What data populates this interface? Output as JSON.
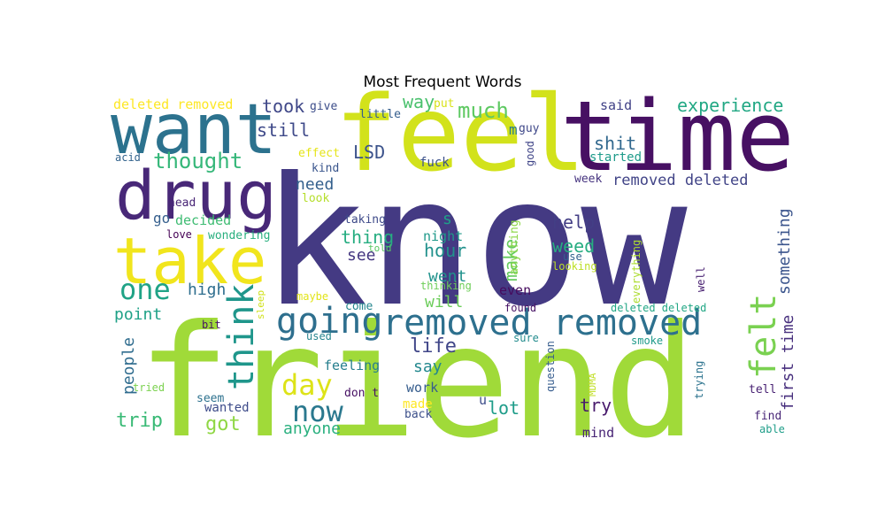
{
  "chart_data": {
    "type": "wordcloud",
    "title": "Most Frequent Words",
    "colormap": "viridis",
    "background": "#ffffff",
    "words": [
      {
        "text": "know",
        "weight": 1.0,
        "color": "#443a83"
      },
      {
        "text": "friend",
        "weight": 0.92,
        "color": "#a0da39"
      },
      {
        "text": "feel",
        "weight": 0.62,
        "color": "#d2e21b"
      },
      {
        "text": "time",
        "weight": 0.6,
        "color": "#471063"
      },
      {
        "text": "want",
        "weight": 0.48,
        "color": "#2c728e"
      },
      {
        "text": "drug",
        "weight": 0.47,
        "color": "#482878"
      },
      {
        "text": "take",
        "weight": 0.44,
        "color": "#f1e51d"
      },
      {
        "text": "removed removed",
        "weight": 0.3,
        "color": "#2d708e"
      },
      {
        "text": "going",
        "weight": 0.26,
        "color": "#2e6f8e"
      },
      {
        "text": "felt",
        "weight": 0.26,
        "color": "#7ad151"
      },
      {
        "text": "think",
        "weight": 0.26,
        "color": "#1f968b"
      },
      {
        "text": "one",
        "weight": 0.2,
        "color": "#20a386"
      },
      {
        "text": "now",
        "weight": 0.2,
        "color": "#2a788e"
      },
      {
        "text": "day",
        "weight": 0.2,
        "color": "#dde318"
      },
      {
        "text": "thought",
        "weight": 0.16,
        "color": "#35b779"
      },
      {
        "text": "much",
        "weight": 0.16,
        "color": "#5ec962"
      },
      {
        "text": "experience",
        "weight": 0.14,
        "color": "#22a884"
      },
      {
        "text": "shit",
        "weight": 0.14,
        "color": "#31688e"
      },
      {
        "text": "LSD",
        "weight": 0.13,
        "color": "#3b528b"
      },
      {
        "text": "still",
        "weight": 0.13,
        "color": "#3e4989"
      },
      {
        "text": "took",
        "weight": 0.13,
        "color": "#3f4788"
      },
      {
        "text": "way",
        "weight": 0.13,
        "color": "#4ac16d"
      },
      {
        "text": "removed deleted",
        "weight": 0.12,
        "color": "#414487"
      },
      {
        "text": "life",
        "weight": 0.14,
        "color": "#404688"
      },
      {
        "text": "make",
        "weight": 0.13,
        "color": "#65cb5e"
      },
      {
        "text": "thing",
        "weight": 0.13,
        "color": "#26ad81"
      },
      {
        "text": "weed",
        "weight": 0.13,
        "color": "#27ad81"
      },
      {
        "text": "hour",
        "weight": 0.12,
        "color": "#21918c"
      },
      {
        "text": "help",
        "weight": 0.12,
        "color": "#433e85"
      },
      {
        "text": "trip",
        "weight": 0.13,
        "color": "#3aba76"
      },
      {
        "text": "got",
        "weight": 0.13,
        "color": "#8fd744"
      },
      {
        "text": "people",
        "weight": 0.12,
        "color": "#2f6c8e"
      },
      {
        "text": "first time",
        "weight": 0.11,
        "color": "#472f7d"
      },
      {
        "text": "something",
        "weight": 0.11,
        "color": "#3a548c"
      },
      {
        "text": "lot",
        "weight": 0.12,
        "color": "#1e9c89"
      },
      {
        "text": "try",
        "weight": 0.12,
        "color": "#481a6c"
      },
      {
        "text": "high",
        "weight": 0.12,
        "color": "#2e6e8e"
      },
      {
        "text": "point",
        "weight": 0.11,
        "color": "#1fa187"
      },
      {
        "text": "see",
        "weight": 0.11,
        "color": "#453781"
      },
      {
        "text": "went",
        "weight": 0.11,
        "color": "#20928c"
      },
      {
        "text": "say",
        "weight": 0.11,
        "color": "#23888e"
      },
      {
        "text": "will",
        "weight": 0.11,
        "color": "#6ccd5a"
      },
      {
        "text": "need",
        "weight": 0.11,
        "color": "#34608d"
      },
      {
        "text": "give",
        "weight": 0.06,
        "color": "#3d4e8a"
      },
      {
        "text": "deleted removed",
        "weight": 0.08,
        "color": "#fde725"
      },
      {
        "text": "go",
        "weight": 0.1,
        "color": "#355f8d"
      },
      {
        "text": "decided",
        "weight": 0.08,
        "color": "#3fbc73"
      },
      {
        "text": "night",
        "weight": 0.08,
        "color": "#1f998a"
      },
      {
        "text": "s",
        "weight": 0.09,
        "color": "#1fa088"
      },
      {
        "text": "anyone",
        "weight": 0.09,
        "color": "#2ab07f"
      },
      {
        "text": "feeling",
        "weight": 0.08,
        "color": "#277f8e"
      },
      {
        "text": "work",
        "weight": 0.08,
        "color": "#365d8d"
      },
      {
        "text": "u",
        "weight": 0.07,
        "color": "#3d4d8a"
      },
      {
        "text": "mind",
        "weight": 0.07,
        "color": "#482475"
      },
      {
        "text": "even",
        "weight": 0.08,
        "color": "#460b5e"
      },
      {
        "text": "m",
        "weight": 0.09,
        "color": "#287c8e"
      },
      {
        "text": "guy",
        "weight": 0.06,
        "color": "#3f4889"
      },
      {
        "text": "said",
        "weight": 0.07,
        "color": "#414287"
      },
      {
        "text": "started",
        "weight": 0.06,
        "color": "#1e9b8a"
      },
      {
        "text": "week",
        "weight": 0.05,
        "color": "#46337f"
      },
      {
        "text": "fuck",
        "weight": 0.06,
        "color": "#3b518b"
      },
      {
        "text": "effect",
        "weight": 0.06,
        "color": "#e5e419"
      },
      {
        "text": "kind",
        "weight": 0.05,
        "color": "#39558c"
      },
      {
        "text": "look",
        "weight": 0.05,
        "color": "#b5de2b"
      },
      {
        "text": "little",
        "weight": 0.05,
        "color": "#355e8d"
      },
      {
        "text": "put",
        "weight": 0.05,
        "color": "#d8e219"
      },
      {
        "text": "acid",
        "weight": 0.05,
        "color": "#33638d"
      },
      {
        "text": "head",
        "weight": 0.05,
        "color": "#482576"
      },
      {
        "text": "love",
        "weight": 0.05,
        "color": "#440154"
      },
      {
        "text": "wondering",
        "weight": 0.05,
        "color": "#29af7f"
      },
      {
        "text": "taking",
        "weight": 0.05,
        "color": "#3e4a89"
      },
      {
        "text": "told",
        "weight": 0.04,
        "color": "#5cc863"
      },
      {
        "text": "thinking",
        "weight": 0.05,
        "color": "#6ece58"
      },
      {
        "text": "maybe",
        "weight": 0.05,
        "color": "#e2e418"
      },
      {
        "text": "come",
        "weight": 0.05,
        "color": "#24868e"
      },
      {
        "text": "used",
        "weight": 0.05,
        "color": "#25848e"
      },
      {
        "text": "sleep",
        "weight": 0.05,
        "color": "#d0e11c"
      },
      {
        "text": "bit",
        "weight": 0.05,
        "color": "#471365"
      },
      {
        "text": "seem",
        "weight": 0.05,
        "color": "#2d718e"
      },
      {
        "text": "wanted",
        "weight": 0.06,
        "color": "#3e4c8a"
      },
      {
        "text": "tried",
        "weight": 0.05,
        "color": "#7cd250"
      },
      {
        "text": "don t",
        "weight": 0.05,
        "color": "#471164"
      },
      {
        "text": "made",
        "weight": 0.06,
        "color": "#fde725"
      },
      {
        "text": "back",
        "weight": 0.05,
        "color": "#3c4f8a"
      },
      {
        "text": "found",
        "weight": 0.05,
        "color": "#471365"
      },
      {
        "text": "sure",
        "weight": 0.05,
        "color": "#228b8d"
      },
      {
        "text": "question",
        "weight": 0.05,
        "color": "#365c8d"
      },
      {
        "text": "MDMA",
        "weight": 0.04,
        "color": "#c0df25"
      },
      {
        "text": "anything",
        "weight": 0.05,
        "color": "#8bd646"
      },
      {
        "text": "good",
        "weight": 0.05,
        "color": "#404588"
      },
      {
        "text": "use",
        "weight": 0.05,
        "color": "#33628d"
      },
      {
        "text": "looking",
        "weight": 0.05,
        "color": "#bddf26"
      },
      {
        "text": "everything",
        "weight": 0.05,
        "color": "#addc30"
      },
      {
        "text": "deleted deleted",
        "weight": 0.05,
        "color": "#22a785"
      },
      {
        "text": "smoke",
        "weight": 0.05,
        "color": "#1f9a8a"
      },
      {
        "text": "well",
        "weight": 0.05,
        "color": "#482071"
      },
      {
        "text": "trying",
        "weight": 0.05,
        "color": "#2c738e"
      },
      {
        "text": "tell",
        "weight": 0.05,
        "color": "#482173"
      },
      {
        "text": "find",
        "weight": 0.05,
        "color": "#482677"
      },
      {
        "text": "able",
        "weight": 0.05,
        "color": "#1f9e89"
      }
    ]
  }
}
